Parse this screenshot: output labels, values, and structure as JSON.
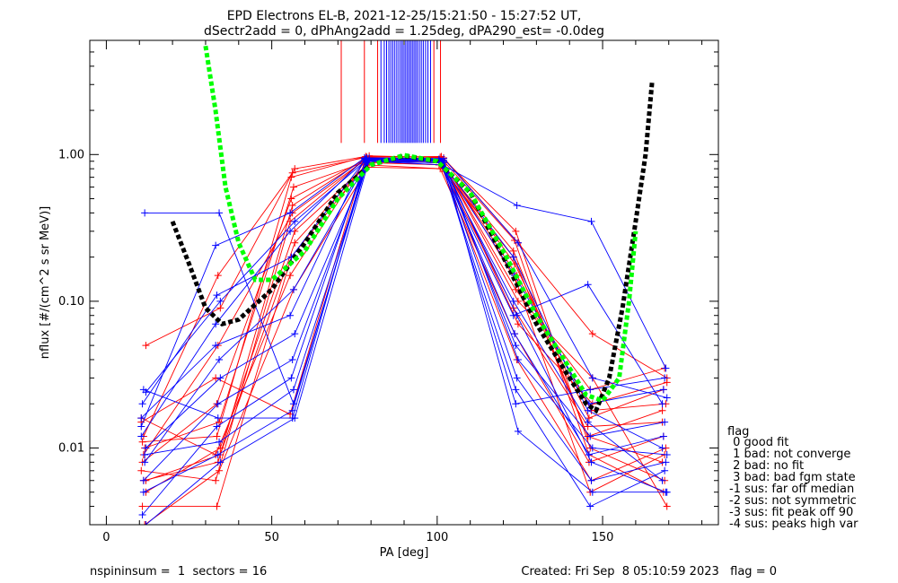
{
  "chart_data": {
    "type": "line",
    "title_lines": [
      "EPD Electrons EL-B, 2021-12-25/15:21:50 - 15:27:52 UT,",
      "dSectr2add = 0, dPhAng2add = 1.25deg, dPA290_est=  -0.0deg"
    ],
    "xlabel": "PA [deg]",
    "ylabel": "nflux [#/(cm^2 s sr MeV)]",
    "xlim": [
      -5,
      185
    ],
    "ylim": [
      0.003,
      6.0
    ],
    "yscale": "log",
    "x_ticks": [
      0,
      50,
      100,
      150
    ],
    "x_tick_labels": [
      "0",
      "50",
      "100",
      "150"
    ],
    "y_ticks": [
      0.01,
      0.1,
      1.0
    ],
    "y_tick_labels": [
      "0.01",
      "0.10",
      "1.00"
    ],
    "colors": {
      "red": "#ff0000",
      "blue": "#0000ff",
      "black": "#000000",
      "green": "#00ff00"
    },
    "pa_bins": [
      11.25,
      33.75,
      56.25,
      78.75,
      101.25,
      123.75,
      146.25,
      168.75
    ],
    "series": [
      {
        "color": "red",
        "values": [
          0.016,
          0.009,
          0.15,
          0.9,
          0.85,
          0.2,
          0.012,
          0.008
        ]
      },
      {
        "color": "red",
        "values": [
          0.006,
          0.008,
          0.45,
          0.95,
          0.9,
          0.12,
          0.025,
          0.035
        ]
      },
      {
        "color": "red",
        "values": [
          0.05,
          0.09,
          0.8,
          0.98,
          0.95,
          0.25,
          0.06,
          0.03
        ]
      },
      {
        "color": "red",
        "values": [
          0.004,
          0.004,
          0.2,
          0.85,
          0.8,
          0.06,
          0.008,
          0.012
        ]
      },
      {
        "color": "red",
        "values": [
          0.01,
          0.015,
          0.6,
          0.9,
          0.88,
          0.15,
          0.018,
          0.02
        ]
      },
      {
        "color": "red",
        "values": [
          0.007,
          0.006,
          0.35,
          0.92,
          0.9,
          0.09,
          0.014,
          0.015
        ]
      },
      {
        "color": "red",
        "values": [
          0.012,
          0.15,
          0.75,
          0.96,
          0.97,
          0.3,
          0.01,
          0.006
        ]
      },
      {
        "color": "red",
        "values": [
          0.005,
          0.01,
          0.3,
          0.88,
          0.85,
          0.1,
          0.03,
          0.004
        ]
      },
      {
        "color": "red",
        "values": [
          0.008,
          0.02,
          0.5,
          0.93,
          0.92,
          0.18,
          0.016,
          0.025
        ]
      },
      {
        "color": "red",
        "values": [
          0.003,
          0.007,
          0.12,
          0.82,
          0.8,
          0.04,
          0.006,
          0.01
        ]
      },
      {
        "color": "red",
        "values": [
          0.015,
          0.03,
          0.017,
          0.9,
          0.9,
          0.22,
          0.012,
          0.018
        ]
      },
      {
        "color": "red",
        "values": [
          0.009,
          0.05,
          0.4,
          0.94,
          0.93,
          0.14,
          0.005,
          0.009
        ]
      },
      {
        "color": "red",
        "values": [
          0.006,
          0.009,
          0.25,
          0.9,
          0.88,
          0.07,
          0.02,
          0.028
        ]
      },
      {
        "color": "red",
        "values": [
          0.011,
          0.012,
          0.7,
          0.97,
          0.96,
          0.26,
          0.009,
          0.005
        ]
      },
      {
        "color": "blue",
        "values": [
          0.4,
          0.4,
          0.02,
          0.9,
          0.85,
          0.45,
          0.35,
          0.035
        ]
      },
      {
        "color": "blue",
        "values": [
          0.014,
          0.24,
          0.4,
          0.95,
          0.9,
          0.08,
          0.13,
          0.02
        ]
      },
      {
        "color": "blue",
        "values": [
          0.025,
          0.016,
          0.016,
          0.95,
          0.9,
          0.02,
          0.025,
          0.03
        ]
      },
      {
        "color": "blue",
        "values": [
          0.003,
          0.008,
          0.016,
          0.92,
          0.9,
          0.013,
          0.005,
          0.005
        ]
      },
      {
        "color": "blue",
        "values": [
          0.0035,
          0.014,
          0.03,
          0.93,
          0.9,
          0.06,
          0.009,
          0.012
        ]
      },
      {
        "color": "blue",
        "values": [
          0.009,
          0.011,
          0.025,
          0.9,
          0.88,
          0.03,
          0.006,
          0.008
        ]
      },
      {
        "color": "blue",
        "values": [
          0.016,
          0.05,
          0.08,
          0.94,
          0.92,
          0.1,
          0.015,
          0.006
        ]
      },
      {
        "color": "blue",
        "values": [
          0.006,
          0.02,
          0.04,
          0.91,
          0.9,
          0.05,
          0.012,
          0.015
        ]
      },
      {
        "color": "blue",
        "values": [
          0.01,
          0.03,
          0.06,
          0.92,
          0.91,
          0.04,
          0.01,
          0.009
        ]
      },
      {
        "color": "blue",
        "values": [
          0.02,
          0.11,
          0.2,
          0.93,
          0.9,
          0.15,
          0.02,
          0.025
        ]
      },
      {
        "color": "blue",
        "values": [
          0.008,
          0.04,
          0.12,
          0.9,
          0.88,
          0.08,
          0.008,
          0.005
        ]
      },
      {
        "color": "blue",
        "values": [
          0.012,
          0.07,
          0.3,
          0.94,
          0.93,
          0.2,
          0.018,
          0.01
        ]
      },
      {
        "color": "blue",
        "values": [
          0.005,
          0.009,
          0.018,
          0.9,
          0.88,
          0.025,
          0.004,
          0.007
        ]
      },
      {
        "color": "blue",
        "values": [
          0.024,
          0.1,
          0.35,
          0.95,
          0.94,
          0.25,
          0.03,
          0.022
        ]
      }
    ],
    "fits": [
      {
        "color": "black",
        "style": "dashed",
        "points": [
          [
            20,
            0.35
          ],
          [
            25,
            0.18
          ],
          [
            30,
            0.09
          ],
          [
            35,
            0.07
          ],
          [
            40,
            0.075
          ],
          [
            50,
            0.12
          ],
          [
            60,
            0.25
          ],
          [
            70,
            0.55
          ],
          [
            80,
            0.85
          ],
          [
            90,
            0.98
          ],
          [
            100,
            0.9
          ],
          [
            110,
            0.55
          ],
          [
            120,
            0.2
          ],
          [
            130,
            0.07
          ],
          [
            140,
            0.03
          ],
          [
            145,
            0.02
          ],
          [
            148,
            0.018
          ],
          [
            152,
            0.03
          ],
          [
            156,
            0.09
          ],
          [
            160,
            0.35
          ],
          [
            163,
            1.0
          ],
          [
            165,
            3.2
          ]
        ]
      },
      {
        "color": "green",
        "style": "dashed",
        "points": [
          [
            30,
            5.5
          ],
          [
            33,
            2.0
          ],
          [
            36,
            0.6
          ],
          [
            40,
            0.25
          ],
          [
            45,
            0.14
          ],
          [
            50,
            0.14
          ],
          [
            60,
            0.22
          ],
          [
            70,
            0.5
          ],
          [
            80,
            0.85
          ],
          [
            90,
            0.99
          ],
          [
            100,
            0.9
          ],
          [
            110,
            0.55
          ],
          [
            120,
            0.22
          ],
          [
            130,
            0.08
          ],
          [
            140,
            0.035
          ],
          [
            145,
            0.023
          ],
          [
            150,
            0.021
          ],
          [
            155,
            0.03
          ],
          [
            158,
            0.1
          ],
          [
            160,
            0.3
          ]
        ]
      }
    ],
    "vertical_lines": [
      {
        "color": "red",
        "x": [
          71,
          78,
          82,
          99,
          101
        ]
      },
      {
        "color": "blue",
        "x": [
          83,
          84,
          84.7,
          85.4,
          86,
          86.6,
          87.2,
          87.8,
          88.4,
          89,
          89.5,
          90,
          90.5,
          91,
          91.5,
          92,
          92.5,
          93,
          93.5,
          94,
          94.6,
          95.2,
          95.8,
          96.5,
          97.2,
          98
        ]
      }
    ],
    "vertical_line_ymin": 1.2
  },
  "legend": {
    "title": "flag",
    "entries": [
      " 0 good fit",
      " 1 bad: not converge",
      " 2 bad: no fit",
      " 3 bad: bad fgm state",
      "-1 sus: far off median",
      "-2 sus: not symmetric",
      "-3 sus: fit peak off 90",
      "-4 sus: peaks high var"
    ]
  },
  "footer": {
    "left": "nspininsum =  1  sectors = 16",
    "right": "Created: Fri Sep  8 05:10:59 2023   flag = 0"
  }
}
